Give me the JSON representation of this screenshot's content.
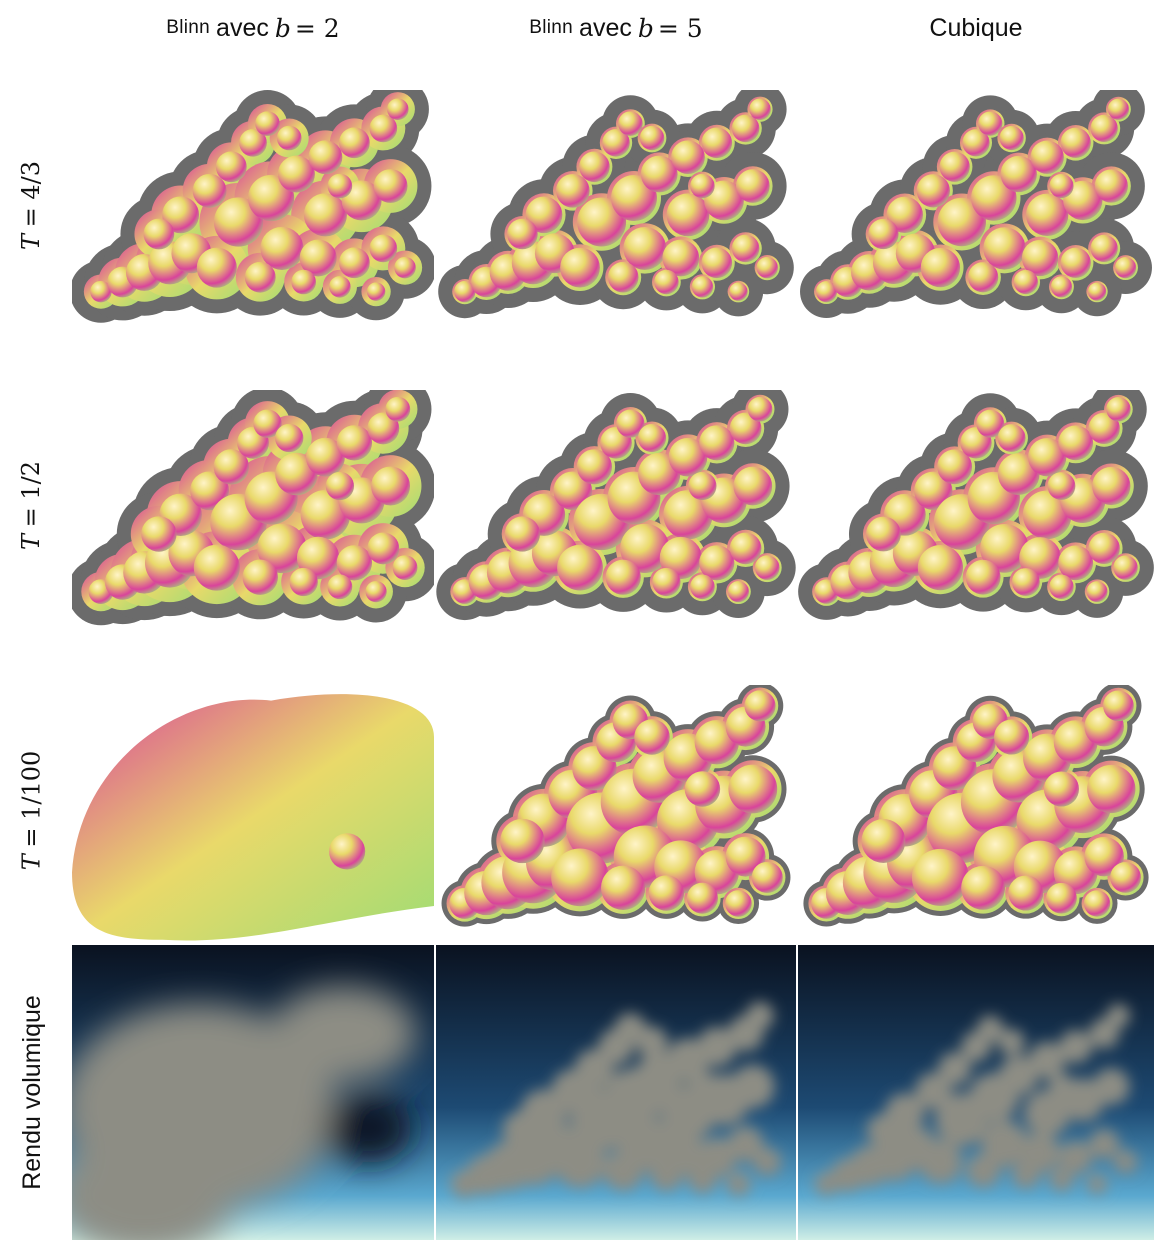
{
  "columns": [
    {
      "lead": "Blinn",
      "rest": "avec",
      "var": "b",
      "eq": "= 2"
    },
    {
      "lead": "Blinn",
      "rest": "avec",
      "var": "b",
      "eq": "= 5"
    },
    {
      "label": "Cubique"
    }
  ],
  "rows": [
    {
      "var": "T",
      "eq": "= 4/3"
    },
    {
      "var": "T",
      "eq": "= 1/2"
    },
    {
      "var": "T",
      "eq": "= 1/100"
    },
    {
      "label": "Rendu volumique"
    }
  ],
  "colors": {
    "halo": "#6b6b6b",
    "blob_magenta": "#d9439b",
    "blob_yellow": "#e9d96a",
    "blob_green": "#9fdc74",
    "sky_top": "#0a1220",
    "sky_mid": "#1d4a73",
    "sky_bottom": "#cfeee6",
    "cloud": "#8d8d84"
  }
}
